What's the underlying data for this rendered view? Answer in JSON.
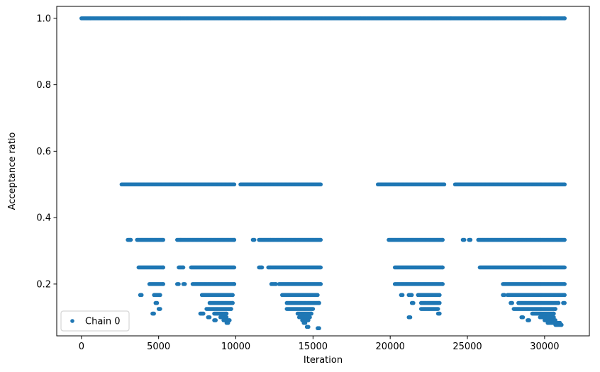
{
  "chart_data": {
    "type": "scatter",
    "xlabel": "Iteration",
    "ylabel": "Acceptance ratio",
    "xlim": [
      -1600,
      32900
    ],
    "ylim": [
      0.044,
      1.036
    ],
    "xticks": [
      0,
      5000,
      10000,
      15000,
      20000,
      25000,
      30000
    ],
    "yticks": [
      0.2,
      0.4,
      0.6,
      0.8,
      1.0
    ],
    "xtick_labels": [
      "0",
      "5000",
      "10000",
      "15000",
      "20000",
      "25000",
      "30000"
    ],
    "ytick_labels": [
      "0.2",
      "0.4",
      "0.6",
      "0.8",
      "1.0"
    ],
    "legend": {
      "position": "lower-left",
      "entries": [
        "Chain 0"
      ]
    },
    "grid": false,
    "series": [
      {
        "name": "Chain 0",
        "color": "#1f77b4",
        "marker": "dot",
        "bands": [
          {
            "y": 1.0,
            "segments": [
              [
                0,
                31300
              ]
            ]
          },
          {
            "y": 0.5,
            "segments": [
              [
                2600,
                9900
              ],
              [
                10300,
                15500
              ],
              [
                19200,
                23500
              ],
              [
                24200,
                31300
              ]
            ]
          },
          {
            "y": 0.333,
            "segments": [
              [
                3000,
                3200
              ],
              [
                3600,
                5300
              ],
              [
                6200,
                9900
              ],
              [
                11100,
                11200
              ],
              [
                11500,
                15500
              ],
              [
                19900,
                23400
              ],
              [
                24700,
                24800
              ],
              [
                25100,
                25200
              ],
              [
                25700,
                31300
              ]
            ]
          },
          {
            "y": 0.25,
            "segments": [
              [
                3700,
                5300
              ],
              [
                6300,
                6600
              ],
              [
                7100,
                9900
              ],
              [
                11500,
                11700
              ],
              [
                12100,
                15500
              ],
              [
                20300,
                23400
              ],
              [
                25800,
                31300
              ]
            ]
          },
          {
            "y": 0.2,
            "segments": [
              [
                4400,
                5300
              ],
              [
                6200,
                6300
              ],
              [
                6600,
                6700
              ],
              [
                7200,
                9900
              ],
              [
                12300,
                12600
              ],
              [
                12800,
                15500
              ],
              [
                20300,
                23400
              ],
              [
                27300,
                31300
              ]
            ]
          },
          {
            "y": 0.167,
            "segments": [
              [
                3800,
                3900
              ],
              [
                4700,
                5100
              ],
              [
                7800,
                9800
              ],
              [
                13000,
                15300
              ],
              [
                20700,
                20800
              ],
              [
                21200,
                21400
              ],
              [
                21800,
                23200
              ],
              [
                27300,
                27400
              ],
              [
                27600,
                31300
              ]
            ]
          },
          {
            "y": 0.143,
            "segments": [
              [
                4800,
                4900
              ],
              [
                8300,
                9800
              ],
              [
                13300,
                15400
              ],
              [
                21400,
                21500
              ],
              [
                22000,
                23200
              ],
              [
                27800,
                27900
              ],
              [
                28300,
                30900
              ],
              [
                31200,
                31300
              ]
            ]
          },
          {
            "y": 0.125,
            "segments": [
              [
                5000,
                5100
              ],
              [
                8100,
                9700
              ],
              [
                13300,
                15000
              ],
              [
                22000,
                23100
              ],
              [
                28000,
                30700
              ]
            ]
          },
          {
            "y": 0.111,
            "segments": [
              [
                4600,
                4700
              ],
              [
                7700,
                7900
              ],
              [
                8600,
                9400
              ],
              [
                14000,
                14900
              ],
              [
                23100,
                23200
              ],
              [
                29200,
                30600
              ]
            ]
          },
          {
            "y": 0.1,
            "segments": [
              [
                8200,
                8300
              ],
              [
                9000,
                9400
              ],
              [
                14100,
                14800
              ],
              [
                21200,
                21300
              ],
              [
                28500,
                28600
              ],
              [
                29700,
                30600
              ]
            ]
          },
          {
            "y": 0.091,
            "segments": [
              [
                8600,
                8700
              ],
              [
                9200,
                9600
              ],
              [
                14300,
                14700
              ],
              [
                28900,
                29000
              ],
              [
                30000,
                30700
              ]
            ]
          },
          {
            "y": 0.083,
            "segments": [
              [
                9400,
                9500
              ],
              [
                14400,
                14500
              ],
              [
                30200,
                31000
              ]
            ]
          },
          {
            "y": 0.077,
            "segments": [
              [
                30700,
                31100
              ]
            ]
          },
          {
            "y": 0.071,
            "segments": [
              [
                14600,
                14700
              ]
            ]
          },
          {
            "y": 0.067,
            "segments": [
              [
                15300,
                15400
              ]
            ]
          }
        ]
      }
    ]
  }
}
